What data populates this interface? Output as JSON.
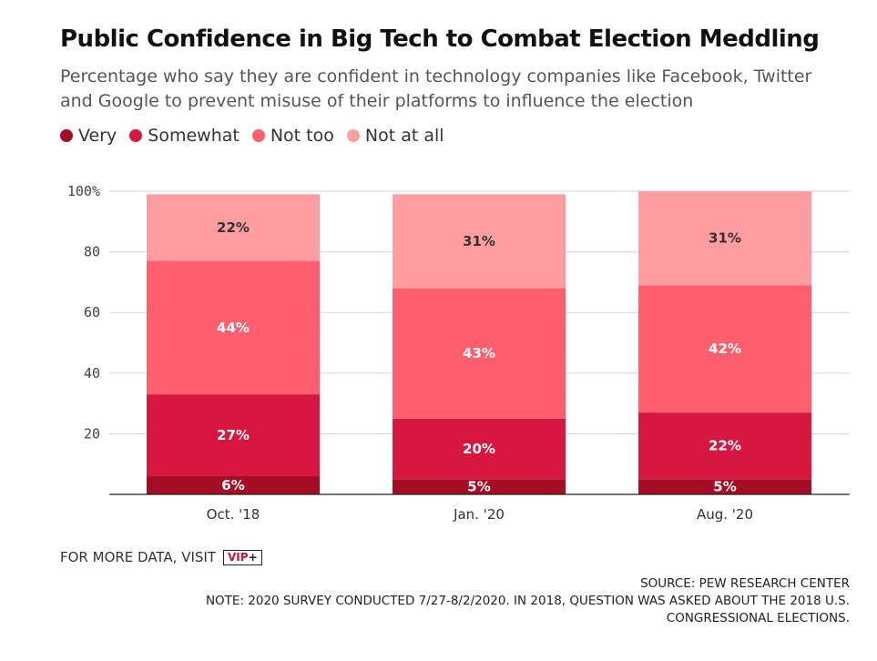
{
  "title": "Public Confidence in Big Tech to Combat Election Meddling",
  "subtitle": "Percentage who say they are confident in technology companies like Facebook, Twitter and Google to prevent misuse of their platforms to influence the election",
  "footer": {
    "more_data": "FOR MORE DATA, VISIT",
    "vip_text": "VIP",
    "vip_plus": "+",
    "source": "SOURCE: PEW RESEARCH CENTER",
    "note_line1": "NOTE: 2020 SURVEY CONDUCTED 7/27-8/2/2020. IN 2018, QUESTION WAS ASKED ABOUT THE 2018 U.S.",
    "note_line2": "CONGRESSIONAL ELECTIONS."
  },
  "chart_data": {
    "type": "bar",
    "stacked": true,
    "title": "Public Confidence in Big Tech to Combat Election Meddling",
    "categories": [
      "Oct. '18",
      "Jan. '20",
      "Aug. '20"
    ],
    "series": [
      {
        "name": "Very",
        "color": "#a50d25",
        "values": [
          6,
          5,
          5
        ],
        "labels": [
          "6%",
          "5%",
          "5%"
        ]
      },
      {
        "name": "Somewhat",
        "color": "#d7173f",
        "values": [
          27,
          20,
          22
        ],
        "labels": [
          "27%",
          "20%",
          "22%"
        ]
      },
      {
        "name": "Not too",
        "color": "#ff5f6d",
        "values": [
          44,
          43,
          42
        ],
        "labels": [
          "44%",
          "43%",
          "42%"
        ]
      },
      {
        "name": "Not at all",
        "color": "#ff9da3",
        "values": [
          22,
          31,
          31
        ],
        "labels": [
          "22%",
          "31%",
          "31%"
        ]
      }
    ],
    "yticks": [
      "20",
      "40",
      "60",
      "80",
      "100%"
    ],
    "ytick_values": [
      20,
      40,
      60,
      80,
      100
    ],
    "ylim": [
      0,
      100
    ],
    "grid": true,
    "legend": "top-left"
  }
}
